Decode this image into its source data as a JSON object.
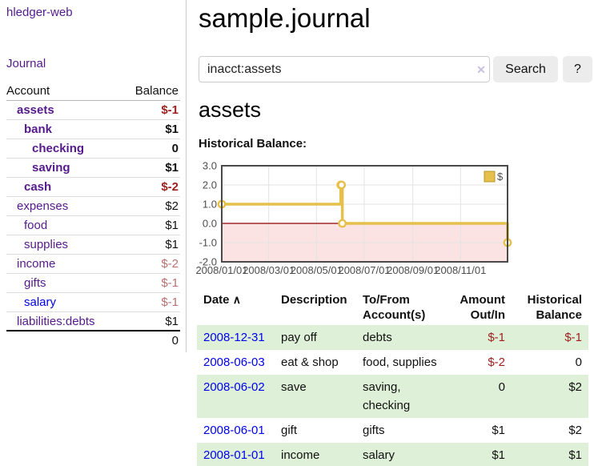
{
  "app": {
    "brand": "hledger-web",
    "nav_journal": "Journal"
  },
  "colors": {
    "link_visited_purple": "#551a8b",
    "link_blue": "#0000ee",
    "negative_strong": "#9e1f1f",
    "negative_light": "#b87070",
    "register_row_green": "#dff0d8",
    "chart_series_yellow": "#e6c04a",
    "chart_zero_line": "#8b0000",
    "chart_negative_fill": "#fbe3e3"
  },
  "sidebar": {
    "header": {
      "account": "Account",
      "balance": "Balance"
    },
    "accounts": [
      {
        "name": "assets",
        "balance": "$-1"
      },
      {
        "name": "bank",
        "balance": "$1"
      },
      {
        "name": "checking",
        "balance": "0"
      },
      {
        "name": "saving",
        "balance": "$1"
      },
      {
        "name": "cash",
        "balance": "$-2"
      },
      {
        "name": "expenses",
        "balance": "$2"
      },
      {
        "name": "food",
        "balance": "$1"
      },
      {
        "name": "supplies",
        "balance": "$1"
      },
      {
        "name": "income",
        "balance": "$-2"
      },
      {
        "name": "gifts",
        "balance": "$-1"
      },
      {
        "name": "salary",
        "balance": "$-1"
      },
      {
        "name": "liabilities:debts",
        "balance": "$1"
      }
    ],
    "total": "0"
  },
  "header": {
    "title": "sample.journal"
  },
  "search": {
    "value": "inacct:assets",
    "clear_icon": "✕",
    "button_label": "Search",
    "help_label": "?"
  },
  "account_page": {
    "title": "assets",
    "chart_label": "Historical Balance:"
  },
  "chart_data": {
    "type": "line",
    "title": "Historical Balance",
    "step": true,
    "xlim": [
      "2008-01-01",
      "2008-12-31"
    ],
    "ylim": [
      -2,
      3
    ],
    "y_ticks": [
      "3.0",
      "2.0",
      "1.0",
      "0.0",
      "-1.0",
      "-2.0"
    ],
    "x_ticks": [
      {
        "date": "2008-01-01",
        "label": "2008/01/01"
      },
      {
        "date": "2008-03-01",
        "label": "2008/03/01"
      },
      {
        "date": "2008-05-01",
        "label": "2008/05/01"
      },
      {
        "date": "2008-07-01",
        "label": "2008/07/01"
      },
      {
        "date": "2008-09-01",
        "label": "2008/09/01"
      },
      {
        "date": "2008-11-01",
        "label": "2008/11/01"
      }
    ],
    "series": [
      {
        "name": "$",
        "color": "#e6c04a",
        "points": [
          {
            "date": "2008-01-01",
            "value": 1
          },
          {
            "date": "2008-06-01",
            "value": 2
          },
          {
            "date": "2008-06-02",
            "value": 2
          },
          {
            "date": "2008-06-03",
            "value": 0
          },
          {
            "date": "2008-12-31",
            "value": -1
          }
        ]
      }
    ],
    "legend": {
      "position": "top-right",
      "label": "$"
    },
    "zero_line_color": "#8b0000",
    "negative_fill": "#fbe3e3",
    "grid": true
  },
  "register": {
    "columns": {
      "date": "Date",
      "sort_icon": "∧",
      "description": "Description",
      "accounts": "To/From Account(s)",
      "amount": "Amount Out/In",
      "balance": "Historical Balance"
    },
    "rows": [
      {
        "date": "2008-12-31",
        "description": "pay off",
        "accounts": "debts",
        "amount": "$-1",
        "balance": "$-1"
      },
      {
        "date": "2008-06-03",
        "description": "eat & shop",
        "accounts": "food, supplies",
        "amount": "$-2",
        "balance": "0"
      },
      {
        "date": "2008-06-02",
        "description": "save",
        "accounts": "saving, checking",
        "amount": "0",
        "balance": "$2"
      },
      {
        "date": "2008-06-01",
        "description": "gift",
        "accounts": "gifts",
        "amount": "$1",
        "balance": "$2"
      },
      {
        "date": "2008-01-01",
        "description": "income",
        "accounts": "salary",
        "amount": "$1",
        "balance": "$1"
      }
    ]
  }
}
